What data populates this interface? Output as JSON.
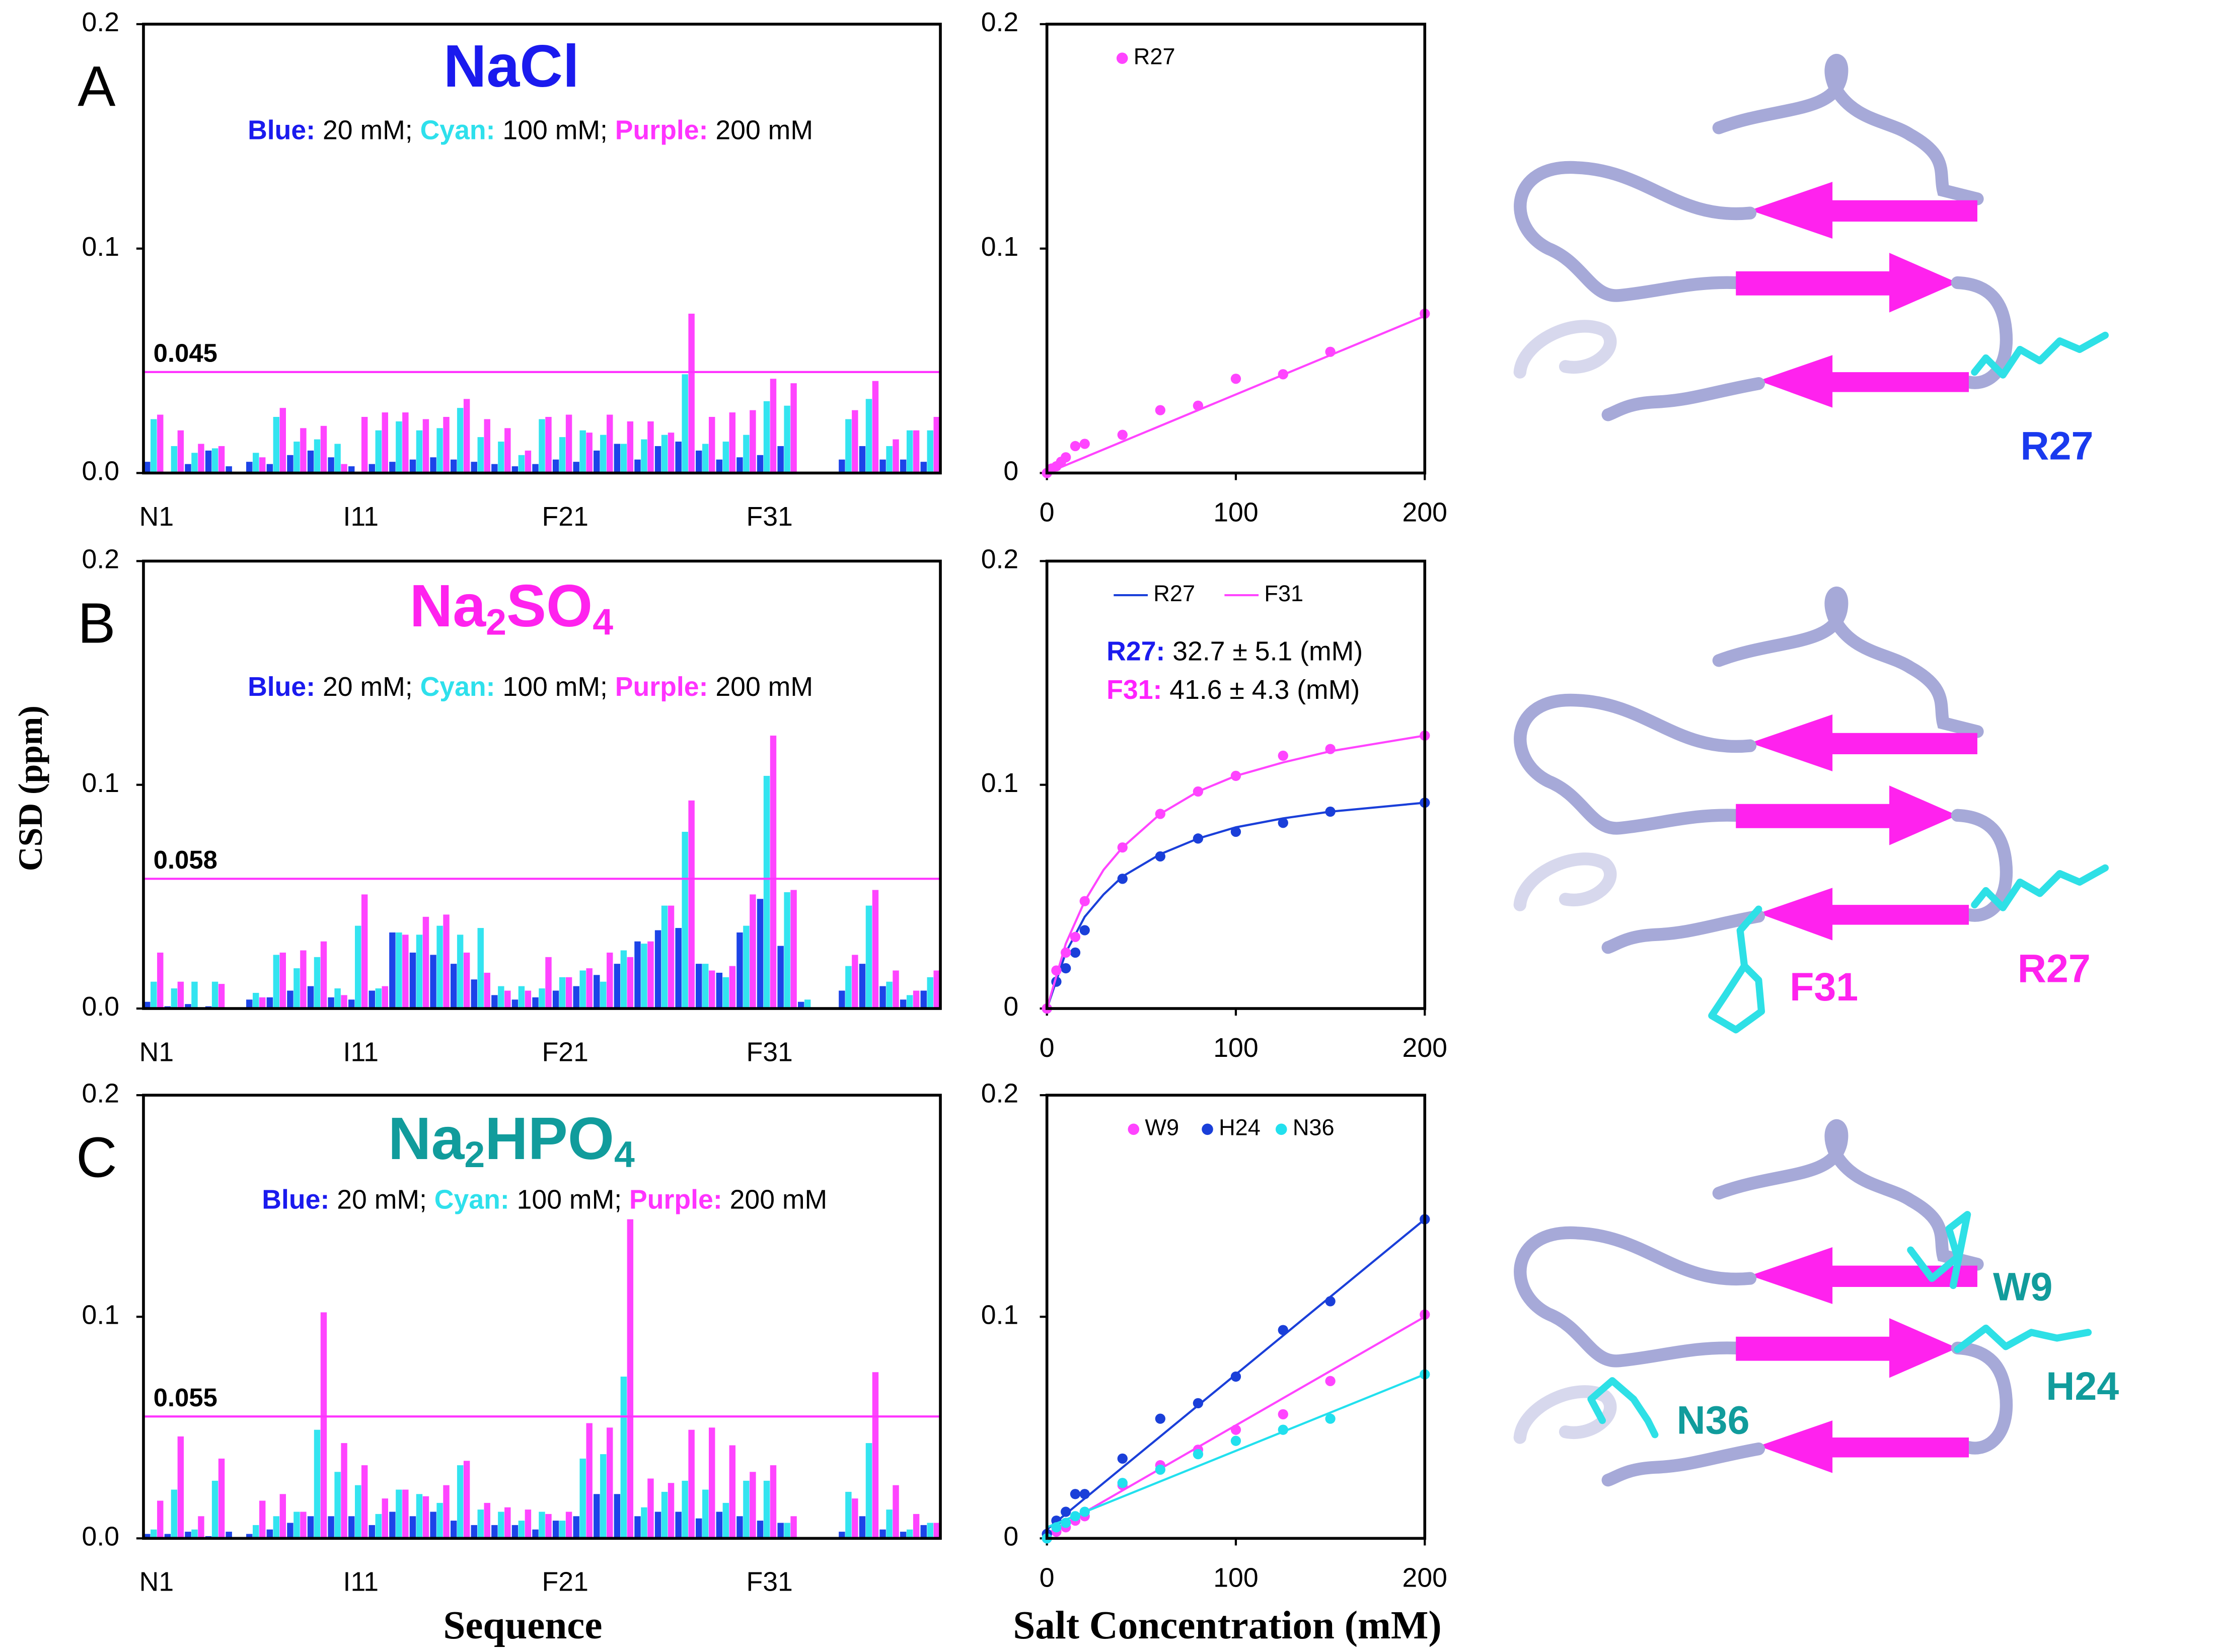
{
  "chart_data": [
    {
      "type": "bar",
      "panel_label": "A",
      "title": "NaCl",
      "title_color": "#1a1aee",
      "categories": [
        "N1",
        null,
        null,
        null,
        null,
        null,
        null,
        null,
        null,
        null,
        "I11",
        null,
        null,
        null,
        null,
        null,
        null,
        null,
        null,
        null,
        "F21",
        null,
        null,
        null,
        null,
        null,
        null,
        null,
        null,
        null,
        "F31",
        null,
        null,
        null,
        null,
        null,
        null,
        null,
        null
      ],
      "series": [
        {
          "name": "20 mM;",
          "legend_label": "Blue:",
          "legend_color": "#1a1aee",
          "color": "#1c44e8",
          "values": [
            0.005,
            0,
            0.004,
            0.01,
            0.003,
            0.005,
            0.004,
            0.008,
            0.01,
            0.007,
            0.003,
            0.004,
            0.005,
            0.006,
            0.007,
            0.006,
            0.005,
            0.004,
            0.003,
            0.004,
            0.006,
            0.005,
            0.01,
            0.013,
            0.006,
            0.012,
            0.014,
            0.01,
            0.006,
            0.007,
            0.008,
            0.012,
            0,
            0,
            0.006,
            0.012,
            0.006,
            0.006,
            0.005
          ]
        },
        {
          "name": "100 mM;",
          "legend_label": "Cyan:",
          "legend_color": "#2ee0ec",
          "color": "#33e4f0",
          "values": [
            0.024,
            0.012,
            0.009,
            0.011,
            0,
            0.009,
            0.025,
            0.014,
            0.015,
            0.013,
            0,
            0.019,
            0.023,
            0.019,
            0.02,
            0.029,
            0.016,
            0.014,
            0.008,
            0.024,
            0.016,
            0.019,
            0.017,
            0.013,
            0.015,
            0.017,
            0.044,
            0.013,
            0.014,
            0.017,
            0.032,
            0.03,
            0,
            0,
            0.024,
            0.033,
            0.012,
            0.019,
            0.019
          ]
        },
        {
          "name": "200 mM",
          "legend_label": "Purple:",
          "legend_color": "#ff33ff",
          "color": "#ff44ff",
          "values": [
            0.026,
            0.019,
            0.013,
            0.012,
            0,
            0.007,
            0.029,
            0.02,
            0.021,
            0.004,
            0.025,
            0.027,
            0.027,
            0.024,
            0.025,
            0.033,
            0.024,
            0.02,
            0.01,
            0.025,
            0.026,
            0.018,
            0.026,
            0.023,
            0.023,
            0.018,
            0.071,
            0.025,
            0.027,
            0.028,
            0.042,
            0.04,
            0,
            0,
            0.028,
            0.041,
            0.015,
            0.019,
            0.025
          ]
        }
      ],
      "ylim": [
        0,
        0.2
      ],
      "yticks": [
        {
          "value": 0,
          "label": "0.0"
        },
        {
          "value": 0.1,
          "label": "0.1"
        },
        0.2
      ],
      "threshold": {
        "value": 0.045,
        "color": "#ff33ff"
      }
    },
    {
      "type": "bar",
      "panel_label": "B",
      "title": "Na2SO4",
      "title_color": "#ff22ee",
      "ylabel": "CSD (ppm)",
      "categories": [
        "N1",
        null,
        null,
        null,
        null,
        null,
        null,
        null,
        null,
        null,
        "I11",
        null,
        null,
        null,
        null,
        null,
        null,
        null,
        null,
        null,
        "F21",
        null,
        null,
        null,
        null,
        null,
        null,
        null,
        null,
        null,
        "F31",
        null,
        null,
        null,
        null,
        null,
        null,
        null,
        null
      ],
      "series": [
        {
          "name": "20 mM;",
          "legend_label": "Blue:",
          "legend_color": "#1a1aee",
          "color": "#1c44e8",
          "values": [
            0.003,
            0.001,
            0.002,
            0.001,
            0,
            0.004,
            0.005,
            0.008,
            0.01,
            0.005,
            0.004,
            0.008,
            0.034,
            0.025,
            0.024,
            0.02,
            0.013,
            0.006,
            0.004,
            0.005,
            0.008,
            0.01,
            0.015,
            0.02,
            0.03,
            0.035,
            0.036,
            0.02,
            0.016,
            0.034,
            0.049,
            0.028,
            0.003,
            0,
            0.008,
            0.02,
            0.01,
            0.004,
            0.008
          ]
        },
        {
          "name": "100 mM;",
          "legend_label": "Cyan:",
          "legend_color": "#2ee0ec",
          "color": "#33e4f0",
          "values": [
            0.012,
            0.009,
            0.012,
            0.012,
            0,
            0.007,
            0.024,
            0.018,
            0.023,
            0.009,
            0.037,
            0.009,
            0.034,
            0.033,
            0.037,
            0.033,
            0.036,
            0.01,
            0.01,
            0.009,
            0.014,
            0.017,
            0.012,
            0.026,
            0.029,
            0.046,
            0.079,
            0.02,
            0.014,
            0.037,
            0.104,
            0.052,
            0.004,
            0,
            0.019,
            0.046,
            0.012,
            0.006,
            0.014
          ]
        },
        {
          "name": "200 mM",
          "legend_label": "Purple:",
          "legend_color": "#ff33ff",
          "color": "#ff44ff",
          "values": [
            0.025,
            0.012,
            0,
            0.011,
            0,
            0.005,
            0.025,
            0.026,
            0.03,
            0.006,
            0.051,
            0.01,
            0.033,
            0.041,
            0.042,
            0.025,
            0.016,
            0.008,
            0.008,
            0.023,
            0.014,
            0.018,
            0.025,
            0.023,
            0.03,
            0.046,
            0.093,
            0.017,
            0.019,
            0.051,
            0.122,
            0.053,
            0,
            0,
            0.024,
            0.053,
            0.017,
            0.008,
            0.017
          ]
        }
      ],
      "ylim": [
        0,
        0.2
      ],
      "yticks": [
        {
          "value": 0,
          "label": "0.0"
        },
        {
          "value": 0.1,
          "label": "0.1"
        },
        0.2
      ],
      "threshold": {
        "value": 0.058,
        "color": "#ff33ff"
      }
    },
    {
      "type": "bar",
      "panel_label": "C",
      "title": "Na2HPO4",
      "title_color": "#119c9c",
      "xlabel": "Sequence",
      "categories": [
        "N1",
        null,
        null,
        null,
        null,
        null,
        null,
        null,
        null,
        null,
        "I11",
        null,
        null,
        null,
        null,
        null,
        null,
        null,
        null,
        null,
        "F21",
        null,
        null,
        null,
        null,
        null,
        null,
        null,
        null,
        null,
        "F31",
        null,
        null,
        null,
        null,
        null,
        null,
        null,
        null
      ],
      "series": [
        {
          "name": "20 mM;",
          "legend_label": "Blue:",
          "legend_color": "#1a1aee",
          "color": "#1c44e8",
          "values": [
            0.002,
            0.002,
            0.003,
            0.001,
            0.003,
            0.002,
            0.004,
            0.007,
            0.01,
            0.01,
            0.01,
            0.006,
            0.012,
            0.01,
            0.012,
            0.008,
            0.006,
            0.006,
            0.006,
            0.004,
            0.008,
            0.01,
            0.02,
            0.02,
            0.01,
            0.012,
            0.012,
            0.009,
            0.012,
            0.01,
            0.008,
            0.007,
            0,
            0,
            0.003,
            0.01,
            0.004,
            0.003,
            0.006
          ]
        },
        {
          "name": "100 mM;",
          "legend_label": "Cyan:",
          "legend_color": "#2ee0ec",
          "color": "#33e4f0",
          "values": [
            0.004,
            0.022,
            0.004,
            0.026,
            0,
            0.006,
            0.01,
            0.012,
            0.049,
            0.03,
            0.024,
            0.011,
            0.022,
            0.02,
            0.016,
            0.033,
            0.013,
            0.012,
            0.008,
            0.012,
            0.008,
            0.036,
            0.038,
            0.073,
            0.014,
            0.021,
            0.026,
            0.022,
            0.016,
            0.026,
            0.026,
            0.007,
            0,
            0,
            0.021,
            0.043,
            0.013,
            0.004,
            0.007
          ]
        },
        {
          "name": "200 mM",
          "legend_label": "Purple:",
          "legend_color": "#ff33ff",
          "color": "#ff44ff",
          "values": [
            0.017,
            0.046,
            0.01,
            0.036,
            0,
            0.017,
            0.02,
            0.012,
            0.102,
            0.043,
            0.033,
            0.018,
            0.022,
            0.019,
            0.024,
            0.035,
            0.016,
            0.014,
            0.013,
            0.011,
            0.012,
            0.052,
            0.05,
            0.144,
            0.027,
            0.025,
            0.049,
            0.05,
            0.042,
            0.03,
            0.033,
            0.01,
            0,
            0,
            0.018,
            0.075,
            0.024,
            0.011,
            0.007
          ]
        }
      ],
      "ylim": [
        0,
        0.2
      ],
      "yticks": [
        {
          "value": 0,
          "label": "0.0"
        },
        {
          "value": 0.1,
          "label": "0.1"
        },
        0.2
      ],
      "threshold": {
        "value": 0.055,
        "color": "#ff33ff"
      }
    },
    {
      "type": "scatter",
      "legend_style": "marker",
      "xlim": [
        0,
        200
      ],
      "xticks": [
        0,
        100,
        200
      ],
      "ylim": [
        0,
        0.2
      ],
      "yticks": [
        0,
        0.1,
        0.2
      ],
      "series": [
        {
          "name": "R27",
          "color": "#ff44ff",
          "x": [
            0,
            2.5,
            5,
            7.5,
            10,
            15,
            20,
            40,
            60,
            80,
            100,
            125,
            150,
            200
          ],
          "values": [
            0,
            0.002,
            0.003,
            0.005,
            0.007,
            0.012,
            0.013,
            0.017,
            0.028,
            0.03,
            0.042,
            0.044,
            0.054,
            0.071
          ],
          "fit_x": [
            0,
            200
          ],
          "fit_values": [
            0,
            0.07
          ]
        }
      ]
    },
    {
      "type": "scatter",
      "legend_style": "line",
      "xlim": [
        0,
        200
      ],
      "xticks": [
        0,
        100,
        200
      ],
      "ylim": [
        0,
        0.2
      ],
      "yticks": [
        0,
        0.1,
        0.2
      ],
      "series": [
        {
          "name": "R27",
          "color": "#1a3fd9",
          "x": [
            0,
            5,
            10,
            15,
            20,
            40,
            60,
            80,
            100,
            125,
            150,
            200
          ],
          "values": [
            0,
            0.012,
            0.018,
            0.025,
            0.035,
            0.058,
            0.068,
            0.076,
            0.079,
            0.083,
            0.088,
            0.092
          ],
          "fit_x": [
            0,
            10,
            20,
            30,
            40,
            60,
            80,
            100,
            125,
            150,
            200
          ],
          "fit_values": [
            0,
            0.025,
            0.041,
            0.051,
            0.059,
            0.069,
            0.076,
            0.081,
            0.085,
            0.088,
            0.092
          ]
        },
        {
          "name": "F31",
          "color": "#ff44ff",
          "x": [
            0,
            5,
            10,
            15,
            20,
            40,
            60,
            80,
            100,
            125,
            150,
            200
          ],
          "values": [
            0,
            0.017,
            0.025,
            0.032,
            0.048,
            0.072,
            0.087,
            0.097,
            0.104,
            0.113,
            0.116,
            0.122
          ],
          "fit_x": [
            0,
            10,
            20,
            30,
            40,
            60,
            80,
            100,
            125,
            150,
            200
          ],
          "fit_values": [
            0,
            0.029,
            0.048,
            0.062,
            0.072,
            0.087,
            0.097,
            0.104,
            0.11,
            0.115,
            0.122
          ]
        }
      ],
      "annotations": [
        {
          "label": "R27:",
          "color": "#1a1aee",
          "text": "32.7 ± 5.1 (mM)"
        },
        {
          "label": "F31:",
          "color": "#ff22ff",
          "text": "41.6 ± 4.3 (mM)"
        }
      ]
    },
    {
      "type": "scatter",
      "legend_style": "marker",
      "xlabel": "Salt Concentration (mM)",
      "xlim": [
        0,
        200
      ],
      "xticks": [
        0,
        100,
        200
      ],
      "ylim": [
        0,
        0.2
      ],
      "yticks": [
        0,
        0.1,
        0.2
      ],
      "series": [
        {
          "name": "W9",
          "color": "#ff44ff",
          "x": [
            0,
            5,
            10,
            15,
            20,
            40,
            60,
            80,
            100,
            125,
            150,
            200
          ],
          "values": [
            0,
            0.003,
            0.005,
            0.008,
            0.01,
            0.024,
            0.033,
            0.04,
            0.049,
            0.056,
            0.071,
            0.101
          ],
          "fit_x": [
            0,
            200
          ],
          "fit_values": [
            0.002,
            0.1
          ]
        },
        {
          "name": "H24",
          "color": "#1a3fd9",
          "x": [
            0,
            5,
            10,
            15,
            20,
            40,
            60,
            80,
            100,
            125,
            150,
            200
          ],
          "values": [
            0.002,
            0.008,
            0.012,
            0.02,
            0.02,
            0.036,
            0.054,
            0.061,
            0.073,
            0.094,
            0.107,
            0.144
          ],
          "fit_x": [
            0,
            200
          ],
          "fit_values": [
            0.004,
            0.144
          ]
        },
        {
          "name": "N36",
          "color": "#22e0ee",
          "x": [
            0,
            5,
            10,
            15,
            20,
            40,
            60,
            80,
            100,
            125,
            150,
            200
          ],
          "values": [
            0,
            0.005,
            0.007,
            0.01,
            0.012,
            0.025,
            0.031,
            0.038,
            0.044,
            0.049,
            0.054,
            0.074
          ],
          "fit_x": [
            0,
            200
          ],
          "fit_values": [
            0.005,
            0.074
          ]
        }
      ]
    }
  ],
  "structures": [
    {
      "labels": [
        {
          "text": "R27",
          "color": "#1a3aee"
        }
      ]
    },
    {
      "labels": [
        {
          "text": "F31",
          "color": "#ff22ee"
        },
        {
          "text": "R27",
          "color": "#ff22ee"
        }
      ]
    },
    {
      "labels": [
        {
          "text": "W9",
          "color": "#119c9c"
        },
        {
          "text": "H24",
          "color": "#119c9c"
        },
        {
          "text": "N36",
          "color": "#119c9c"
        }
      ]
    }
  ]
}
